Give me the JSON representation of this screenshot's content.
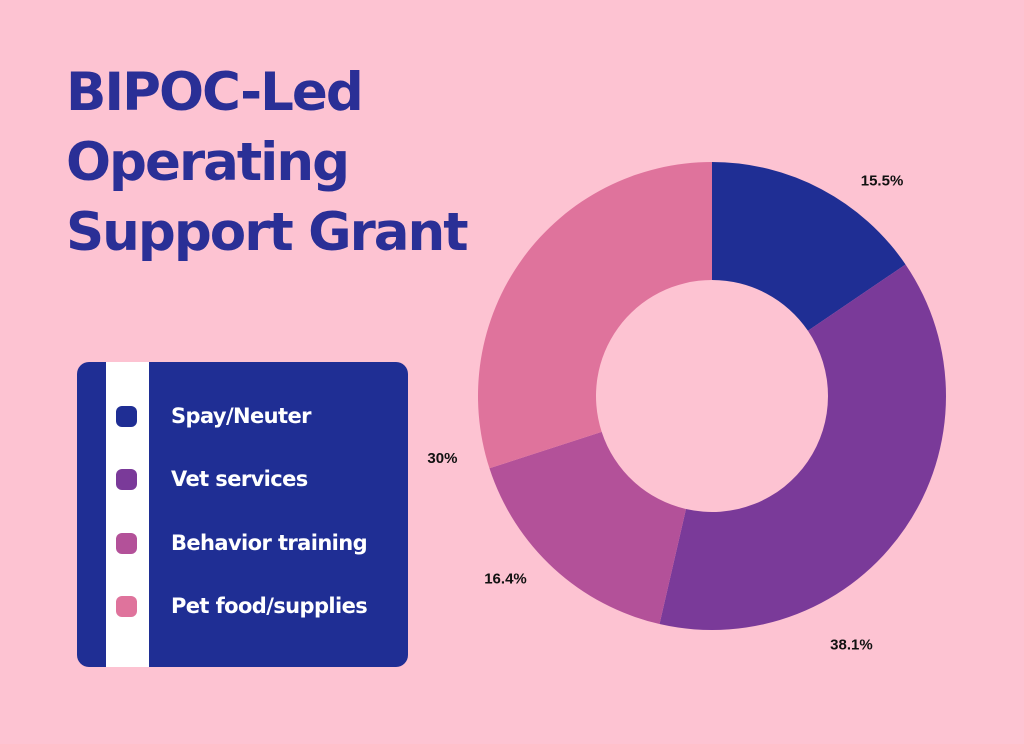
{
  "title_lines": [
    "BIPOC-Led",
    "Operating",
    "Support Grant"
  ],
  "chart_data": {
    "type": "pie",
    "donut": true,
    "title": "BIPOC-Led Operating Support Grant",
    "categories": [
      "Spay/Neuter",
      "Vet services",
      "Behavior training",
      "Pet food/supplies"
    ],
    "values": [
      15.5,
      38.1,
      16.4,
      30
    ],
    "value_labels": [
      "15.5%",
      "38.1%",
      "16.4%",
      "30%"
    ],
    "colors": [
      "#1f2e94",
      "#7a3a99",
      "#b35199",
      "#df739c"
    ],
    "legend_position": "left"
  }
}
